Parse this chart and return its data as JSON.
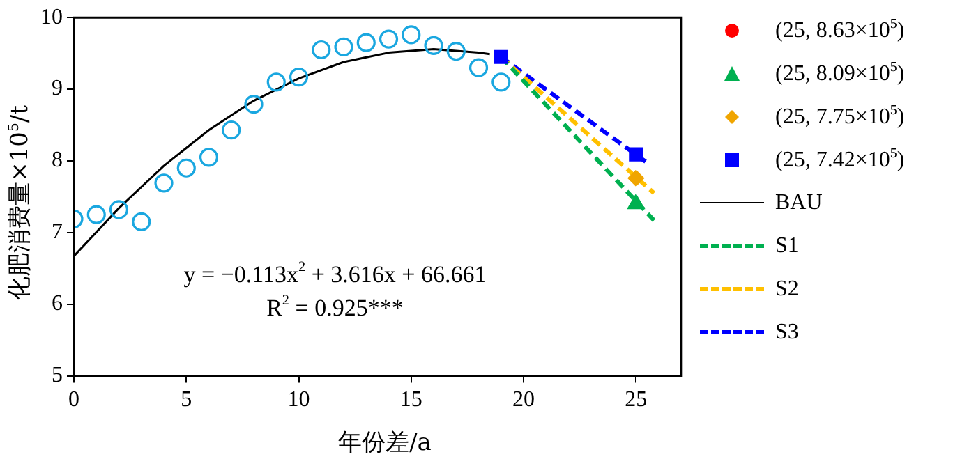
{
  "chart_data": {
    "type": "scatter",
    "ylabel": "化肥消费量×10$^{5}$/t",
    "xlabel": "年份差/a",
    "xlim": [
      0,
      27
    ],
    "xticks": [
      0,
      5,
      10,
      15,
      20,
      25
    ],
    "ylim": [
      5,
      10
    ],
    "yticks": [
      5,
      6,
      7,
      8,
      9,
      10
    ],
    "grid": false,
    "legend": "right",
    "annotations": [
      "y = −0.113x$^{2}$ + 3.616x + 66.661",
      "R$^{2}$ = 0.925***"
    ],
    "series": [
      {
        "marker": "circle",
        "color": "#1aa7e0",
        "x": [
          0,
          1,
          2,
          3,
          4,
          5,
          6,
          7,
          8,
          9,
          10,
          11,
          12,
          13,
          14,
          15,
          16,
          17,
          18,
          19
        ],
        "values": [
          7.19,
          7.25,
          7.32,
          7.15,
          7.69,
          7.9,
          8.05,
          8.43,
          8.79,
          9.1,
          9.17,
          9.55,
          9.59,
          9.65,
          9.7,
          9.76,
          9.61,
          9.53,
          9.3,
          9.1
        ]
      },
      {
        "marker": "circle",
        "name": "(25, 8.63×10$^{5}$)",
        "color": "#ff0000"
      },
      {
        "type": "scatter",
        "marker": "triangle",
        "name": "(25, 8.09×10$^{5}$)",
        "color": "#00b050",
        "x": [
          25
        ],
        "values": [
          7.4
        ]
      },
      {
        "type": "scatter",
        "marker": "diamond",
        "name": "(25, 7.75×10$^{5}$)",
        "color": "#f0a500",
        "x": [
          25
        ],
        "values": [
          7.76
        ]
      },
      {
        "type": "scatter",
        "marker": "square",
        "name": "(25, 7.42×10$^{5}$)",
        "color": "#0000ff",
        "x": [
          19,
          25
        ],
        "values": [
          9.45,
          8.09
        ]
      },
      {
        "type": "line",
        "line_style": "solid",
        "name": "BAU",
        "color": "#000000",
        "x": [
          0,
          2,
          4,
          6,
          8,
          10,
          12,
          14,
          16,
          18,
          18.5
        ],
        "values": [
          6.67,
          7.34,
          7.93,
          8.43,
          8.84,
          9.15,
          9.38,
          9.51,
          9.56,
          9.51,
          9.49
        ]
      },
      {
        "type": "line",
        "line_style": "dashed",
        "name": "S1",
        "color": "#00b050",
        "x": [
          19,
          25.8
        ],
        "values": [
          9.45,
          7.17
        ]
      },
      {
        "type": "line",
        "line_style": "dashed",
        "name": "S2",
        "color": "#ffc000",
        "x": [
          19,
          25.8
        ],
        "values": [
          9.45,
          7.55
        ]
      },
      {
        "type": "line",
        "line_style": "dashed",
        "name": "S3",
        "color": "#0000ff",
        "x": [
          19,
          25.6
        ],
        "values": [
          9.45,
          7.95
        ]
      }
    ]
  }
}
